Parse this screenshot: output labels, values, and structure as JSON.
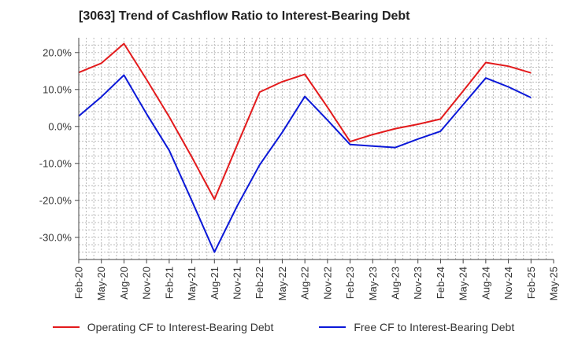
{
  "chart_data": {
    "type": "line",
    "title": "[3063]  Trend of Cashflow Ratio to Interest-Bearing Debt",
    "xlabel": "",
    "ylabel": "",
    "x": [
      "Feb-20",
      "May-20",
      "Aug-20",
      "Nov-20",
      "Feb-21",
      "May-21",
      "Aug-21",
      "Nov-21",
      "Feb-22",
      "May-22",
      "Aug-22",
      "Nov-22",
      "Feb-23",
      "May-23",
      "Aug-23",
      "Nov-23",
      "Feb-24",
      "May-24",
      "Aug-24",
      "Nov-24",
      "Feb-25",
      "May-25"
    ],
    "ylim": [
      -36,
      24
    ],
    "yticks": [
      20,
      10,
      0,
      -10,
      -20,
      -30
    ],
    "ytick_labels": [
      "20.0%",
      "10.0%",
      "0.0%",
      "-10.0%",
      "-20.0%",
      "-30.0%"
    ],
    "grid": true,
    "legend_position": "bottom",
    "series": [
      {
        "name": "Operating CF to Interest-Bearing Debt",
        "color": "#e31a1c",
        "values": [
          14.6,
          17.1,
          22.4,
          12.7,
          2.6,
          -8.3,
          -19.7,
          -5.1,
          9.3,
          12.1,
          14.1,
          5.2,
          -4.1,
          -2.2,
          -0.6,
          0.6,
          2.0,
          9.6,
          17.3,
          16.3,
          14.5,
          null
        ]
      },
      {
        "name": "Free CF to Interest-Bearing Debt",
        "color": "#0b18d8",
        "values": [
          2.8,
          8.0,
          13.9,
          3.4,
          -6.5,
          -20.1,
          -34.0,
          -21.6,
          -10.4,
          -1.6,
          8.1,
          1.7,
          -4.9,
          -5.3,
          -5.7,
          -3.4,
          -1.3,
          5.9,
          13.1,
          10.7,
          7.8,
          null
        ]
      }
    ]
  }
}
